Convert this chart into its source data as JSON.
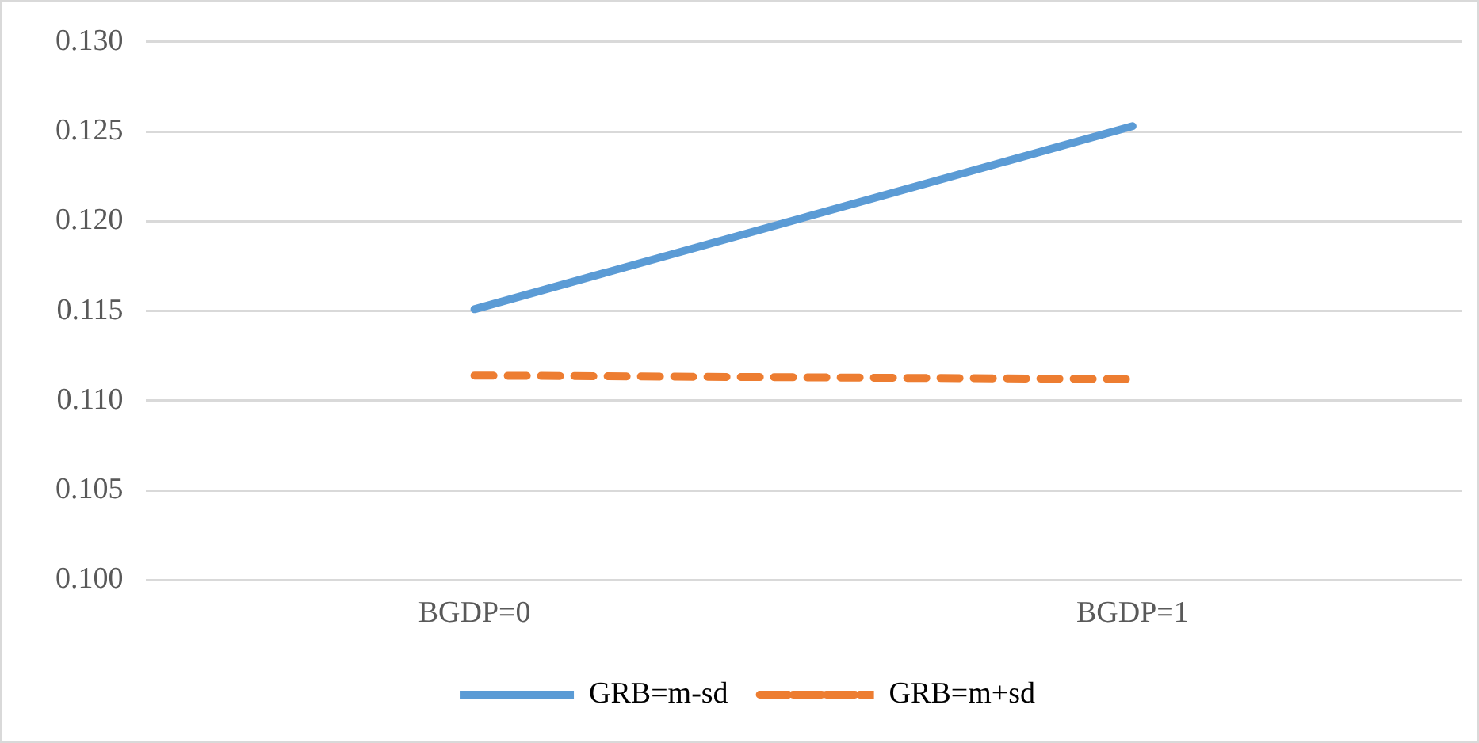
{
  "chart_data": {
    "type": "line",
    "categories": [
      "BGDP=0",
      "BGDP=1"
    ],
    "series": [
      {
        "name": "GRB=m-sd",
        "color": "#5b9bd5",
        "values": [
          0.1151,
          0.1253
        ],
        "line_style": "solid"
      },
      {
        "name": "GRB=m+sd",
        "color": "#ed7d31",
        "values": [
          0.1114,
          0.1112
        ],
        "line_style": "dashed"
      }
    ],
    "ylim": [
      0.1,
      0.13
    ],
    "yticks": [
      {
        "value": 0.1,
        "label": "0.100"
      },
      {
        "value": 0.105,
        "label": "0.105"
      },
      {
        "value": 0.11,
        "label": "0.110"
      },
      {
        "value": 0.115,
        "label": "0.115"
      },
      {
        "value": 0.12,
        "label": "0.120"
      },
      {
        "value": 0.125,
        "label": "0.125"
      },
      {
        "value": 0.13,
        "label": "0.130"
      }
    ],
    "grid": "y",
    "legend": "bottom",
    "marker": "none"
  }
}
